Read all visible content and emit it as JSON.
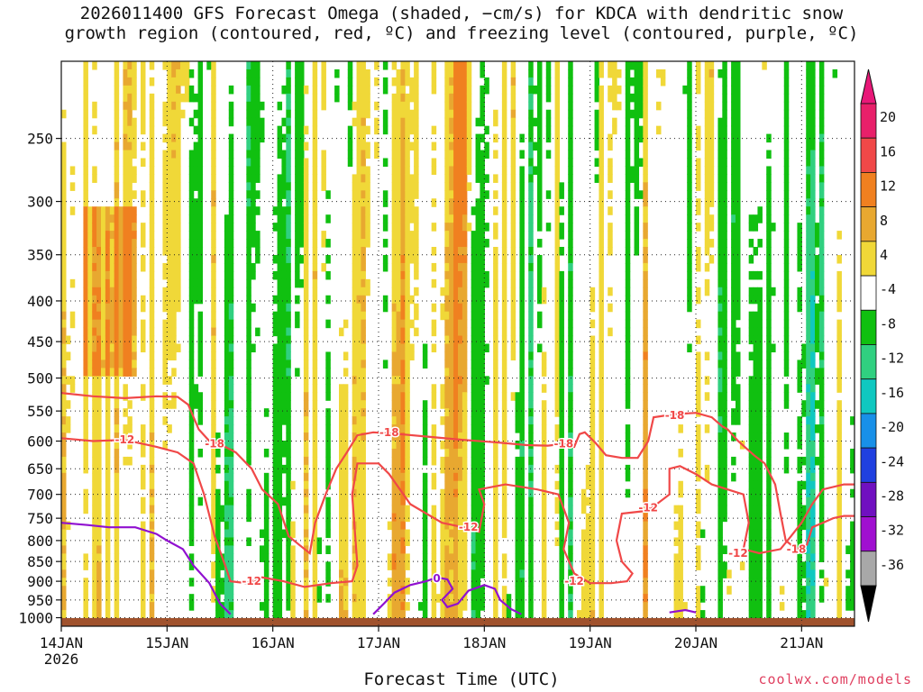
{
  "chart_data": {
    "type": "heatmap",
    "title_lines": [
      "2026011400 GFS Forecast Omega (shaded, −cm/s) for KDCA with dendritic snow",
      "growth region (contoured, red, ºC) and freezing level (contoured, purple, ºC)"
    ],
    "xlabel": "Forecast Time (UTC)",
    "credit": "coolwx.com/models",
    "x_ticks": [
      {
        "day": 0,
        "label": "14JAN",
        "sub": "2026"
      },
      {
        "day": 1,
        "label": "15JAN",
        "sub": ""
      },
      {
        "day": 2,
        "label": "16JAN",
        "sub": ""
      },
      {
        "day": 3,
        "label": "17JAN",
        "sub": ""
      },
      {
        "day": 4,
        "label": "18JAN",
        "sub": ""
      },
      {
        "day": 5,
        "label": "19JAN",
        "sub": ""
      },
      {
        "day": 6,
        "label": "20JAN",
        "sub": ""
      },
      {
        "day": 7,
        "label": "21JAN",
        "sub": ""
      }
    ],
    "xlim_days": [
      0,
      7.5
    ],
    "ylabel": "",
    "y_ticks": [
      250,
      300,
      350,
      400,
      450,
      500,
      550,
      600,
      650,
      700,
      750,
      800,
      850,
      900,
      950,
      1000
    ],
    "ylim_hpa": [
      200,
      1025
    ],
    "y_scale": "log-pressure",
    "grid": "dotted",
    "colorbar": {
      "labels": [
        "20",
        "16",
        "12",
        "8",
        "4",
        "-4",
        "-8",
        "-12",
        "-16",
        "-20",
        "-24",
        "-28",
        "-32",
        "-36"
      ],
      "colors": [
        "#e8206a",
        "#f04848",
        "#f08020",
        "#e8a830",
        "#f0d838",
        "#ffffff",
        "#10c010",
        "#30d080",
        "#10c8c0",
        "#1890e8",
        "#2040e0",
        "#7010c0",
        "#a010d0",
        "#a8a8a8"
      ],
      "end_top_color": "#e81878",
      "end_bottom_color": "#000000"
    },
    "series": [
      {
        "name": "-12",
        "color": "#f04848",
        "points": [
          [
            0,
            595
          ],
          [
            0.3,
            600
          ],
          [
            0.6,
            598
          ],
          [
            0.9,
            610
          ],
          [
            1.1,
            620
          ],
          [
            1.25,
            640
          ],
          [
            1.35,
            700
          ],
          [
            1.45,
            790
          ],
          [
            1.55,
            860
          ],
          [
            1.6,
            900
          ],
          [
            1.75,
            905
          ],
          [
            1.9,
            890
          ],
          [
            2.1,
            900
          ],
          [
            2.3,
            915
          ],
          [
            2.55,
            905
          ],
          [
            2.75,
            900
          ],
          [
            2.8,
            860
          ],
          [
            2.75,
            700
          ],
          [
            2.8,
            640
          ],
          [
            3.0,
            640
          ],
          [
            3.1,
            660
          ],
          [
            3.3,
            720
          ],
          [
            3.6,
            760
          ],
          [
            3.8,
            770
          ],
          [
            3.95,
            780
          ],
          [
            4.0,
            720
          ],
          [
            3.95,
            690
          ],
          [
            4.2,
            680
          ],
          [
            4.5,
            690
          ],
          [
            4.7,
            700
          ],
          [
            4.8,
            760
          ],
          [
            4.75,
            820
          ],
          [
            4.85,
            880
          ],
          [
            5.0,
            905
          ],
          [
            5.2,
            905
          ],
          [
            5.35,
            900
          ],
          [
            5.4,
            880
          ],
          [
            5.3,
            850
          ],
          [
            5.25,
            800
          ],
          [
            5.3,
            740
          ],
          [
            5.5,
            735
          ],
          [
            5.6,
            725
          ],
          [
            5.75,
            700
          ],
          [
            5.75,
            650
          ],
          [
            5.85,
            645
          ],
          [
            6.0,
            660
          ],
          [
            6.15,
            680
          ],
          [
            6.3,
            690
          ],
          [
            6.45,
            700
          ],
          [
            6.5,
            760
          ],
          [
            6.45,
            820
          ],
          [
            6.6,
            830
          ],
          [
            6.8,
            820
          ],
          [
            6.9,
            790
          ],
          [
            7.0,
            760
          ],
          [
            7.1,
            720
          ],
          [
            7.2,
            690
          ],
          [
            7.4,
            680
          ],
          [
            7.5,
            680
          ]
        ],
        "label_at": [
          [
            0.6,
            598
          ],
          [
            1.8,
            900
          ],
          [
            3.85,
            770
          ],
          [
            4.85,
            900
          ],
          [
            5.55,
            728
          ],
          [
            6.4,
            830
          ]
        ]
      },
      {
        "name": "-18",
        "color": "#f04848",
        "points": [
          [
            0,
            522
          ],
          [
            0.3,
            527
          ],
          [
            0.6,
            530
          ],
          [
            0.9,
            527
          ],
          [
            1.1,
            528
          ],
          [
            1.2,
            540
          ],
          [
            1.3,
            580
          ],
          [
            1.4,
            600
          ],
          [
            1.5,
            605
          ],
          [
            1.65,
            620
          ],
          [
            1.8,
            650
          ],
          [
            1.9,
            690
          ],
          [
            2.05,
            720
          ],
          [
            2.15,
            790
          ],
          [
            2.25,
            810
          ],
          [
            2.35,
            830
          ],
          [
            2.4,
            760
          ],
          [
            2.5,
            700
          ],
          [
            2.6,
            650
          ],
          [
            2.7,
            620
          ],
          [
            2.8,
            590
          ],
          [
            2.95,
            585
          ],
          [
            3.2,
            588
          ],
          [
            3.5,
            593
          ],
          [
            3.8,
            598
          ],
          [
            4.1,
            602
          ],
          [
            4.4,
            607
          ],
          [
            4.6,
            608
          ],
          [
            4.75,
            605
          ],
          [
            4.85,
            610
          ],
          [
            4.9,
            588
          ],
          [
            4.95,
            585
          ],
          [
            5.05,
            603
          ],
          [
            5.15,
            625
          ],
          [
            5.3,
            630
          ],
          [
            5.45,
            630
          ],
          [
            5.55,
            600
          ],
          [
            5.6,
            560
          ],
          [
            5.8,
            555
          ],
          [
            6.0,
            553
          ],
          [
            6.15,
            560
          ],
          [
            6.25,
            575
          ],
          [
            6.3,
            580
          ],
          [
            6.4,
            600
          ],
          [
            6.55,
            625
          ],
          [
            6.65,
            640
          ],
          [
            6.75,
            680
          ],
          [
            6.8,
            740
          ],
          [
            6.85,
            800
          ],
          [
            6.95,
            820
          ],
          [
            7.05,
            810
          ],
          [
            7.1,
            770
          ],
          [
            7.2,
            760
          ],
          [
            7.3,
            750
          ],
          [
            7.4,
            745
          ],
          [
            7.5,
            745
          ]
        ],
        "label_at": [
          [
            1.45,
            605
          ],
          [
            3.1,
            585
          ],
          [
            4.75,
            605
          ],
          [
            5.8,
            557
          ],
          [
            6.95,
            820
          ]
        ]
      },
      {
        "name": "0",
        "color": "#9010d0",
        "points": [
          [
            0,
            760
          ],
          [
            0.25,
            765
          ],
          [
            0.45,
            770
          ],
          [
            0.7,
            770
          ],
          [
            0.9,
            785
          ],
          [
            1.0,
            800
          ],
          [
            1.15,
            820
          ],
          [
            1.25,
            860
          ],
          [
            1.4,
            905
          ],
          [
            1.5,
            960
          ],
          [
            1.6,
            990
          ]
        ],
        "label_at": []
      },
      {
        "name": "0",
        "color": "#9010d0",
        "points": [
          [
            2.95,
            990
          ],
          [
            3.05,
            960
          ],
          [
            3.15,
            930
          ],
          [
            3.3,
            910
          ],
          [
            3.45,
            900
          ],
          [
            3.55,
            890
          ],
          [
            3.65,
            895
          ],
          [
            3.7,
            920
          ],
          [
            3.6,
            950
          ],
          [
            3.65,
            970
          ],
          [
            3.75,
            960
          ],
          [
            3.85,
            925
          ],
          [
            4.0,
            910
          ],
          [
            4.1,
            920
          ],
          [
            4.15,
            950
          ],
          [
            4.25,
            975
          ],
          [
            4.35,
            990
          ]
        ],
        "label_at": [
          [
            3.55,
            893
          ]
        ]
      },
      {
        "name": "0",
        "color": "#9010d0",
        "points": [
          [
            5.75,
            985
          ],
          [
            5.9,
            978
          ],
          [
            6.0,
            985
          ]
        ],
        "label_at": []
      }
    ]
  }
}
